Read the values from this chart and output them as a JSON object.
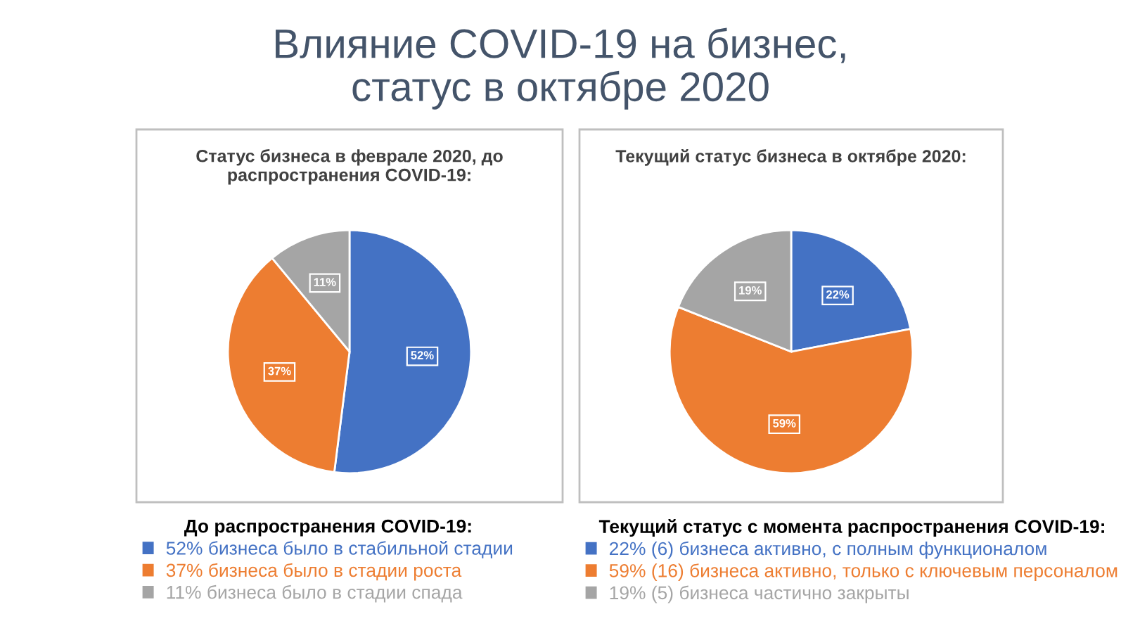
{
  "chart_data": [
    {
      "type": "other",
      "title": "Влияние COVID-19 на бизнес,\nстатус в октябре 2020"
    },
    {
      "type": "pie",
      "title": "Статус бизнеса в феврале 2020, до\nраспространения COVID-19:",
      "legend_title": "До распространения COVID-19:",
      "legend": "bottom",
      "categories": [
        "52% бизнеса было в стабильной стадии",
        "37% бизнеса было в стадии роста",
        "11% бизнеса было в стадии спада"
      ],
      "values": [
        52,
        37,
        11
      ],
      "value_labels": [
        "52%",
        "37%",
        "11%"
      ],
      "colors": [
        "#4472c4",
        "#ed7d31",
        "#a5a5a5"
      ]
    },
    {
      "type": "pie",
      "title": "Текущий статус бизнеса в октябре 2020:",
      "legend_title": "Текущий статус с момента распространения COVID-19:",
      "legend": "bottom",
      "categories": [
        "22% (6) бизнеса активно, с полным функционалом",
        "59% (16) бизнеса активно, только с ключевым персоналом",
        "19% (5) бизнеса частично закрыты"
      ],
      "values": [
        22,
        59,
        19
      ],
      "value_labels": [
        "22%",
        "59%",
        "19%"
      ],
      "colors": [
        "#4472c4",
        "#ed7d31",
        "#a5a5a5"
      ]
    }
  ]
}
